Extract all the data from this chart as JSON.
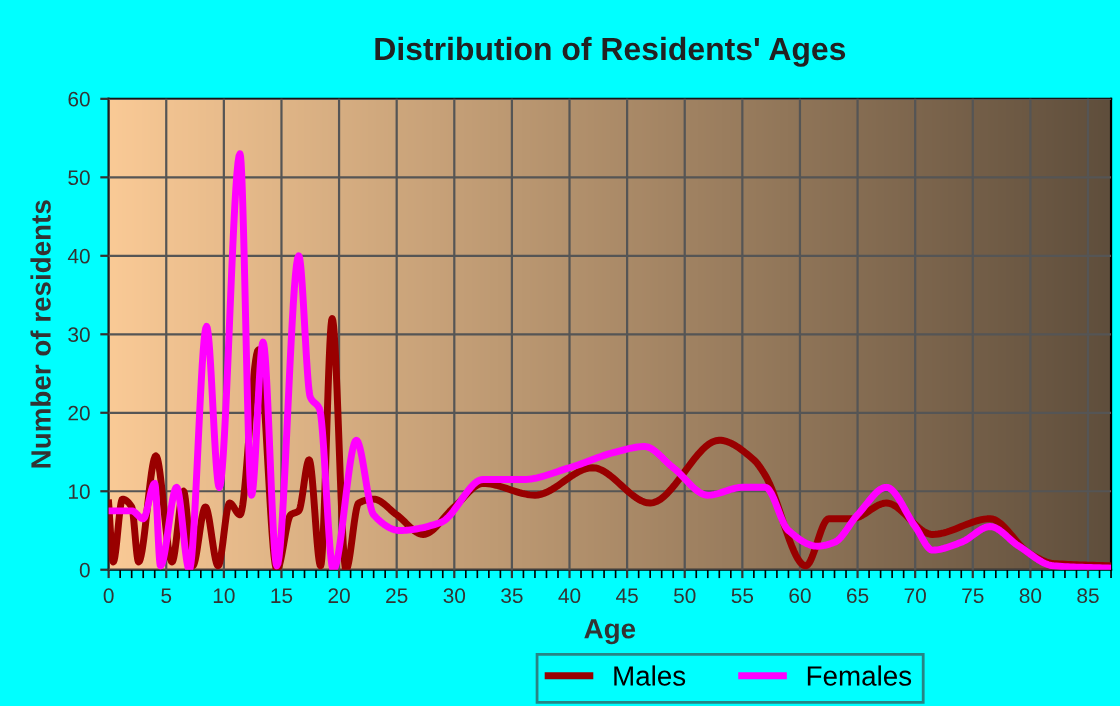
{
  "chart_data": {
    "type": "line",
    "title": "Distribution of Residents' Ages",
    "xlabel": "Age",
    "ylabel": "Number of residents",
    "xlim": [
      0,
      87
    ],
    "xticks": [
      0,
      5,
      10,
      15,
      20,
      25,
      30,
      35,
      40,
      45,
      50,
      55,
      60,
      65,
      70,
      75,
      80,
      85
    ],
    "ylim": [
      0,
      60
    ],
    "yticks": [
      0,
      10,
      20,
      30,
      40,
      50,
      60
    ],
    "grid": true,
    "legend": "bottom",
    "marker": "none",
    "line_style": "solid",
    "series": [
      {
        "name": "Males",
        "color": "#990000",
        "x": [
          0,
          0.4,
          1.2,
          2,
          2.6,
          4.1,
          5.5,
          6.5,
          7.3,
          8.4,
          9.5,
          10.5,
          11.4,
          13,
          14.6,
          15.8,
          16.5,
          17.4,
          18.4,
          19.4,
          20.6,
          21.7,
          23,
          25,
          27.3,
          30,
          32.5,
          37,
          42,
          47,
          53,
          56,
          57,
          60.5,
          62.5,
          64.5,
          67.5,
          71.5,
          76.5,
          80,
          82,
          87
        ],
        "values": [
          8.5,
          1,
          9,
          8,
          1,
          14.5,
          1,
          10,
          0.5,
          8,
          0.5,
          8.5,
          7,
          28,
          0,
          7,
          7.5,
          14,
          0.5,
          32,
          0,
          8.5,
          9,
          7,
          4.5,
          8,
          11,
          9.5,
          13,
          8.5,
          16.5,
          14,
          12,
          0.5,
          6.5,
          6.5,
          8.5,
          4.5,
          6.5,
          2,
          0.8,
          0.5
        ]
      },
      {
        "name": "Females",
        "color": "#ff00ff",
        "x": [
          0,
          2,
          3,
          4,
          4.5,
          5.9,
          7,
          8.5,
          9.6,
          11.4,
          12.4,
          13.4,
          14.6,
          16.5,
          17.5,
          18.3,
          19.5,
          21.5,
          23,
          25.3,
          28.8,
          32.5,
          36,
          40,
          44,
          46.5,
          49,
          52,
          55,
          57,
          59,
          61.5,
          63,
          65,
          67.5,
          70,
          71.5,
          74,
          76.5,
          79,
          82,
          87
        ],
        "values": [
          7.5,
          7.5,
          6.5,
          11,
          0.5,
          10.5,
          0,
          31,
          10.5,
          53,
          9.5,
          29,
          0.5,
          40,
          22,
          20.5,
          0,
          16.5,
          7,
          5,
          6,
          11.5,
          11.5,
          13,
          15,
          15.7,
          13,
          9.5,
          10.5,
          10.5,
          5,
          3,
          3.5,
          7,
          10.5,
          5.5,
          2.5,
          3.5,
          5.5,
          3,
          0.5,
          0.2
        ]
      }
    ]
  }
}
